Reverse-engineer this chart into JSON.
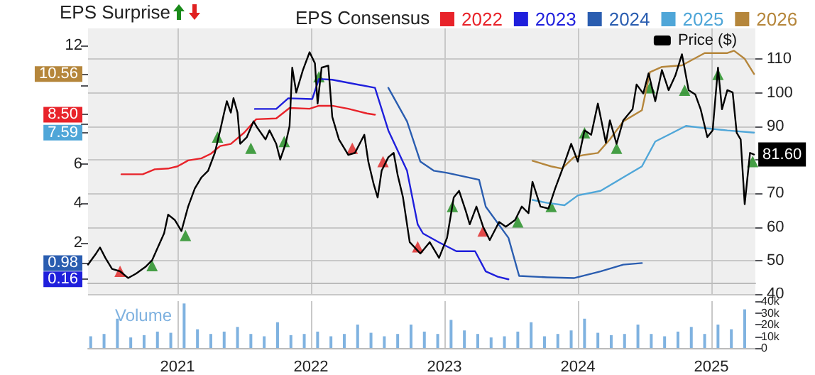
{
  "chart_data": {
    "type": "line",
    "title": "EPS Surprise",
    "legend_title": "EPS Consensus",
    "xlim": [
      2020.33,
      2025.33
    ],
    "xticks": [
      2021,
      2022,
      2023,
      2024,
      2025
    ],
    "ylim": [
      -0.66,
      12.87
    ],
    "yticks": [
      {
        "value": 0.16,
        "label": "0.16"
      },
      {
        "value": 0.98,
        "label": "0.98"
      },
      2,
      4,
      6,
      {
        "value": 7.59,
        "label": "7.59"
      },
      {
        "value": 8,
        "label": null
      },
      {
        "value": 8.5,
        "label": "8.50"
      },
      {
        "value": 10,
        "label": null
      },
      {
        "value": 10.56,
        "label": "10.56"
      },
      12
    ],
    "y2lim": [
      39.6,
      119.2
    ],
    "y2ticks": [
      40,
      50,
      60,
      70,
      {
        "value": 80,
        "label": null
      },
      90,
      100,
      110
    ],
    "y3lim": [
      0,
      40
    ],
    "y3ticks": [
      0,
      {
        "value": 10,
        "label": "10k"
      },
      {
        "value": 20,
        "label": "20k"
      },
      {
        "value": 30,
        "label": "30k"
      },
      {
        "value": 40,
        "label": "40k"
      }
    ],
    "grid": true,
    "legend": "top right",
    "series": [
      {
        "name": "2022",
        "color": "#e8232a",
        "x": [
          2020.58,
          2020.74,
          2020.83,
          2020.93,
          2021.0,
          2021.08,
          2021.18,
          2021.25,
          2021.32,
          2021.4,
          2021.5,
          2021.59,
          2021.74,
          2021.84,
          2021.99,
          2022.06,
          2022.16,
          2022.28,
          2022.42,
          2022.48
        ],
        "values": [
          5.48,
          5.48,
          5.73,
          5.77,
          5.88,
          6.18,
          6.29,
          6.52,
          6.91,
          7.02,
          7.59,
          8.27,
          8.31,
          8.84,
          8.8,
          8.95,
          8.95,
          8.8,
          8.56,
          8.5
        ]
      },
      {
        "name": "2023",
        "color": "#1f1fdc",
        "x": [
          2021.58,
          2021.74,
          2021.83,
          2022.01,
          2022.06,
          2022.16,
          2022.48,
          2022.58,
          2022.72,
          2022.8,
          2022.84,
          2022.96,
          2023.09,
          2023.23,
          2023.31,
          2023.4,
          2023.48
        ],
        "values": [
          8.79,
          8.79,
          9.33,
          9.29,
          10.31,
          10.27,
          9.86,
          7.7,
          5.66,
          2.94,
          2.48,
          2.03,
          1.58,
          1.58,
          0.56,
          0.29,
          0.16
        ]
      },
      {
        "name": "2024",
        "color": "#2a5db0",
        "x": [
          2022.58,
          2022.72,
          2022.82,
          2022.92,
          2023.02,
          2023.26,
          2023.31,
          2023.48,
          2023.56,
          2023.77,
          2023.97,
          2024.17,
          2024.34,
          2024.48
        ],
        "values": [
          9.86,
          8.16,
          6.12,
          5.66,
          5.55,
          5.2,
          3.84,
          2.26,
          0.33,
          0.26,
          0.22,
          0.56,
          0.9,
          0.98
        ]
      },
      {
        "name": "2025",
        "color": "#4fa6d8",
        "x": [
          2023.66,
          2023.77,
          2023.9,
          2024.0,
          2024.17,
          2024.34,
          2024.48,
          2024.58,
          2024.68,
          2024.81,
          2024.95,
          2025.12,
          2025.32
        ],
        "values": [
          4.18,
          4.03,
          3.91,
          4.41,
          4.64,
          5.32,
          5.88,
          7.14,
          7.48,
          7.93,
          7.82,
          7.7,
          7.59
        ]
      },
      {
        "name": "2026",
        "color": "#b5863b",
        "x": [
          2023.66,
          2023.8,
          2023.88,
          2023.97,
          2024.04,
          2024.15,
          2024.24,
          2024.34,
          2024.48,
          2024.54,
          2024.63,
          2024.78,
          2024.95,
          2025.12,
          2025.17,
          2025.25,
          2025.32
        ],
        "values": [
          6.16,
          5.88,
          5.77,
          6.34,
          6.45,
          6.56,
          7.25,
          8.16,
          8.72,
          10.65,
          10.92,
          11.0,
          11.62,
          11.62,
          11.74,
          11.33,
          10.56
        ]
      },
      {
        "name": "Price ($)",
        "color": "#000000",
        "axis": "y2",
        "x": [
          2020.33,
          2020.39,
          2020.42,
          2020.46,
          2020.51,
          2020.57,
          2020.63,
          2020.69,
          2020.76,
          2020.81,
          2020.84,
          2020.9,
          2020.93,
          2020.98,
          2021.03,
          2021.08,
          2021.13,
          2021.18,
          2021.23,
          2021.28,
          2021.32,
          2021.35,
          2021.37,
          2021.4,
          2021.42,
          2021.45,
          2021.47,
          2021.52,
          2021.57,
          2021.6,
          2021.66,
          2021.69,
          2021.74,
          2021.77,
          2021.81,
          2021.84,
          2021.86,
          2021.89,
          2021.94,
          2021.99,
          2022.03,
          2022.05,
          2022.08,
          2022.13,
          2022.16,
          2022.21,
          2022.28,
          2022.33,
          2022.4,
          2022.43,
          2022.47,
          2022.5,
          2022.53,
          2022.58,
          2022.62,
          2022.65,
          2022.69,
          2022.74,
          2022.82,
          2022.89,
          2022.96,
          2023.02,
          2023.07,
          2023.11,
          2023.16,
          2023.19,
          2023.24,
          2023.29,
          2023.34,
          2023.41,
          2023.46,
          2023.53,
          2023.58,
          2023.63,
          2023.66,
          2023.72,
          2023.78,
          2023.83,
          2023.88,
          2023.95,
          2024.0,
          2024.05,
          2024.1,
          2024.15,
          2024.21,
          2024.24,
          2024.29,
          2024.34,
          2024.41,
          2024.44,
          2024.49,
          2024.53,
          2024.58,
          2024.63,
          2024.68,
          2024.73,
          2024.78,
          2024.83,
          2024.88,
          2024.92,
          2024.97,
          2025.01,
          2025.05,
          2025.08,
          2025.12,
          2025.16,
          2025.19,
          2025.22,
          2025.25,
          2025.29,
          2025.32
        ],
        "values": [
          48.8,
          52.1,
          53.9,
          50.8,
          47.5,
          46.8,
          44.8,
          46.1,
          48.1,
          50.1,
          52.8,
          58.1,
          63.7,
          62.1,
          58.8,
          66.1,
          71.5,
          74.8,
          76.8,
          82.1,
          88.8,
          94.1,
          97.5,
          94.1,
          98.4,
          94.1,
          84.8,
          86.8,
          91.5,
          89.5,
          86.1,
          88.8,
          84.8,
          80.1,
          84.8,
          90.1,
          107.5,
          100.1,
          106.8,
          112.1,
          108.8,
          96.8,
          107.5,
          108.1,
          92.8,
          86.1,
          81.5,
          82.1,
          87.5,
          79.5,
          72.8,
          68.8,
          76.8,
          80.8,
          82.1,
          75.5,
          68.8,
          55.5,
          52.1,
          55.5,
          50.8,
          56.8,
          68.8,
          70.8,
          64.8,
          60.8,
          66.1,
          60.1,
          56.1,
          61.5,
          60.1,
          62.1,
          66.1,
          64.1,
          73.5,
          66.1,
          65.5,
          71.5,
          76.8,
          84.8,
          79.5,
          88.8,
          87.5,
          96.8,
          85.1,
          91.8,
          84.8,
          91.8,
          95.1,
          102.5,
          99.8,
          105.8,
          97.5,
          106.8,
          100.8,
          105.1,
          111.5,
          100.8,
          99.5,
          95.1,
          86.8,
          88.8,
          107.5,
          95.1,
          100.8,
          100.1,
          88.1,
          86.1,
          66.8,
          82.1,
          81.6
        ],
        "value_labels": [
          null,
          null,
          null,
          null,
          null,
          null,
          null,
          null,
          null,
          null,
          null,
          null,
          null,
          null,
          null,
          null,
          null,
          null,
          null,
          null,
          null,
          null,
          null,
          null,
          null,
          null,
          null,
          null,
          null,
          null,
          null,
          null,
          null,
          null,
          null,
          null,
          null,
          null,
          null,
          null,
          null,
          null,
          null,
          null,
          null,
          null,
          null,
          null,
          null,
          null,
          null,
          null,
          null,
          null,
          null,
          null,
          null,
          null,
          null,
          null,
          null,
          null,
          null,
          null,
          null,
          null,
          null,
          null,
          null,
          null,
          null,
          null,
          null,
          null,
          null,
          null,
          null,
          null,
          null,
          null,
          null,
          null,
          null,
          null,
          null,
          null,
          null,
          null,
          null,
          null,
          null,
          null,
          null,
          null,
          null,
          null,
          null,
          null,
          null,
          null,
          null,
          null,
          null,
          null,
          null,
          null,
          null,
          null,
          null,
          null,
          "81.60"
        ]
      },
      {
        "type": "scatter",
        "color": "#1a8a1a",
        "axis": "y2",
        "marker": "triangle",
        "x": [
          2020.81,
          2021.06,
          2021.3,
          2021.55,
          2021.8,
          2022.06,
          2023.06,
          2023.55,
          2023.8,
          2024.05,
          2024.29,
          2024.54,
          2024.8,
          2025.05,
          2025.31
        ],
        "values": [
          48.5,
          57.5,
          86.8,
          83.5,
          85.5,
          104.8,
          66.1,
          61.5,
          66.1,
          88.1,
          83.5,
          101.5,
          100.8,
          105.5,
          79.5
        ]
      },
      {
        "type": "scatter",
        "color": "#e02020",
        "axis": "y2",
        "marker": "triangle",
        "x": [
          2020.57,
          2022.31,
          2022.54,
          2022.8,
          2023.29
        ],
        "values": [
          46.8,
          83.5,
          79.5,
          54.1,
          58.8
        ]
      },
      {
        "type": "bar",
        "name": "Volume",
        "color": "#7fb2e0",
        "axis": "y3",
        "x": [
          2020.35,
          2020.45,
          2020.55,
          2020.65,
          2020.75,
          2020.85,
          2020.95,
          2021.05,
          2021.15,
          2021.25,
          2021.35,
          2021.45,
          2021.55,
          2021.65,
          2021.75,
          2021.85,
          2021.95,
          2022.05,
          2022.15,
          2022.25,
          2022.35,
          2022.45,
          2022.55,
          2022.65,
          2022.75,
          2022.85,
          2022.95,
          2023.05,
          2023.15,
          2023.25,
          2023.35,
          2023.45,
          2023.55,
          2023.65,
          2023.75,
          2023.85,
          2023.95,
          2024.05,
          2024.15,
          2024.25,
          2024.35,
          2024.45,
          2024.55,
          2024.65,
          2024.75,
          2024.85,
          2024.95,
          2025.05,
          2025.15,
          2025.25
        ],
        "values": [
          10,
          12,
          25,
          9,
          11,
          14,
          13,
          38,
          16,
          12,
          14,
          18,
          12,
          10,
          22,
          11,
          12,
          14,
          10,
          12,
          20,
          13,
          10,
          12,
          20,
          14,
          12,
          24,
          15,
          12,
          9,
          10,
          14,
          22,
          10,
          12,
          15,
          25,
          13,
          11,
          12,
          20,
          12,
          10,
          14,
          18,
          12,
          20,
          16,
          33
        ]
      }
    ]
  }
}
